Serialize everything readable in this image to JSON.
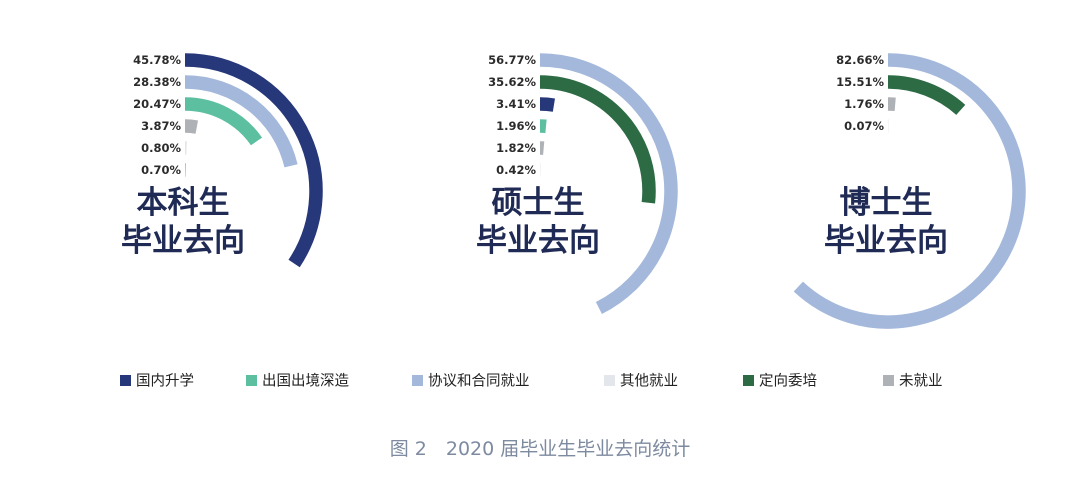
{
  "chart_data": {
    "type": "radial-bar",
    "caption": "图 2　2020 届毕业生毕业去向统计",
    "categories": [
      "国内升学",
      "出国出境深造",
      "协议和合同就业",
      "其他就业",
      "定向委培",
      "未就业"
    ],
    "colors": {
      "国内升学": "#27387a",
      "出国出境深造": "#5cbfa0",
      "协议和合同就业": "#a3b8db",
      "其他就业": "#e3e6eb",
      "定向委培": "#2d6b45",
      "未就业": "#aeb1b6"
    },
    "panels": [
      {
        "title_line1": "本科生",
        "title_line2": "毕业去向",
        "series": [
          {
            "category": "国内升学",
            "value": 45.78,
            "label": "45.78%"
          },
          {
            "category": "协议和合同就业",
            "value": 28.38,
            "label": "28.38%"
          },
          {
            "category": "出国出境深造",
            "value": 20.47,
            "label": "20.47%"
          },
          {
            "category": "未就业",
            "value": 3.87,
            "label": "3.87%"
          },
          {
            "category": "其他就业",
            "value": 0.8,
            "label": "0.80%"
          },
          {
            "category": "未就业",
            "value": 0.7,
            "label": "0.70%"
          }
        ]
      },
      {
        "title_line1": "硕士生",
        "title_line2": "毕业去向",
        "series": [
          {
            "category": "协议和合同就业",
            "value": 56.77,
            "label": "56.77%"
          },
          {
            "category": "定向委培",
            "value": 35.62,
            "label": "35.62%"
          },
          {
            "category": "国内升学",
            "value": 3.41,
            "label": "3.41%"
          },
          {
            "category": "出国出境深造",
            "value": 1.96,
            "label": "1.96%"
          },
          {
            "category": "未就业",
            "value": 1.82,
            "label": "1.82%"
          },
          {
            "category": "其他就业",
            "value": 0.42,
            "label": "0.42%"
          }
        ]
      },
      {
        "title_line1": "博士生",
        "title_line2": "毕业去向",
        "series": [
          {
            "category": "协议和合同就业",
            "value": 82.66,
            "label": "82.66%"
          },
          {
            "category": "定向委培",
            "value": 15.51,
            "label": "15.51%"
          },
          {
            "category": "未就业",
            "value": 1.76,
            "label": "1.76%"
          },
          {
            "category": "其他就业",
            "value": 0.07,
            "label": "0.07%"
          }
        ]
      }
    ],
    "legend": [
      "国内升学",
      "出国出境深造",
      "协议和合同就业",
      "其他就业",
      "定向委培",
      "未就业"
    ],
    "legend_placement": "bottom"
  }
}
